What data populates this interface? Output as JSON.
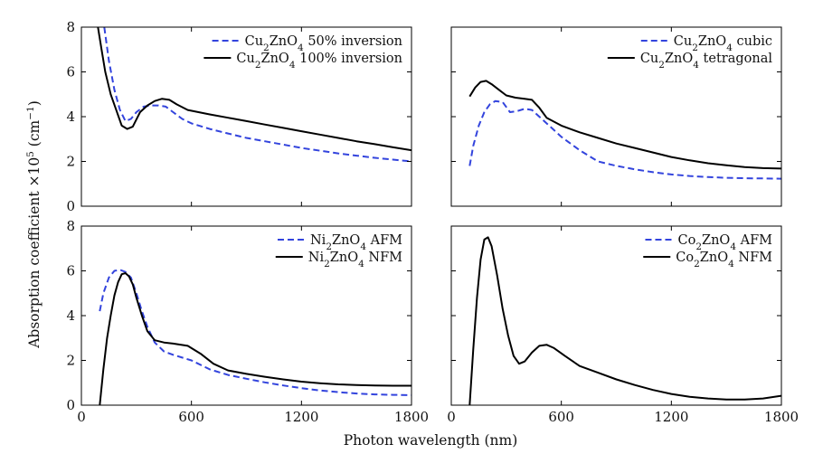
{
  "figure": {
    "xlabel": "Photon wavelength (nm)",
    "ylabel": "Absorption coefficient ×10^5 (cm^−1)",
    "ylabel_parts": [
      "Absorption coefficient ×10",
      "5",
      " (cm",
      "−1",
      ")"
    ]
  },
  "chart_data": [
    {
      "type": "line",
      "id": "top-left",
      "xlim": [
        0,
        1800
      ],
      "ylim": [
        0,
        8
      ],
      "xticks": [
        0,
        600,
        1200,
        1800
      ],
      "yticks": [
        0,
        2,
        4,
        6,
        8
      ],
      "show_xticklabels": false,
      "show_yticklabels": true,
      "legend_position": "top-right",
      "series": [
        {
          "name": "Cu2ZnO4 50% inversion",
          "label_parts": [
            "Cu",
            "2",
            "ZnO",
            "4",
            " 50% inversion"
          ],
          "style": "dashed",
          "color": "#3344dd",
          "x": [
            125,
            150,
            180,
            210,
            240,
            270,
            300,
            340,
            380,
            420,
            460,
            500,
            550,
            600,
            700,
            800,
            900,
            1000,
            1100,
            1200,
            1300,
            1400,
            1500,
            1600,
            1700,
            1800
          ],
          "y": [
            8.0,
            6.5,
            5.2,
            4.3,
            3.8,
            3.9,
            4.2,
            4.45,
            4.5,
            4.5,
            4.45,
            4.2,
            3.9,
            3.7,
            3.45,
            3.25,
            3.05,
            2.9,
            2.75,
            2.6,
            2.48,
            2.36,
            2.26,
            2.16,
            2.08,
            2.0
          ]
        },
        {
          "name": "Cu2ZnO4 100% inversion",
          "label_parts": [
            "Cu",
            "2",
            "ZnO",
            "4",
            " 100% inversion"
          ],
          "style": "solid",
          "color": "#000000",
          "x": [
            90,
            110,
            130,
            160,
            190,
            220,
            250,
            280,
            320,
            360,
            400,
            440,
            480,
            520,
            580,
            700,
            800,
            900,
            1000,
            1100,
            1200,
            1300,
            1400,
            1500,
            1600,
            1700,
            1800
          ],
          "y": [
            8.0,
            7.0,
            6.0,
            5.0,
            4.3,
            3.6,
            3.45,
            3.55,
            4.2,
            4.5,
            4.7,
            4.8,
            4.75,
            4.55,
            4.3,
            4.1,
            3.95,
            3.8,
            3.65,
            3.5,
            3.35,
            3.2,
            3.05,
            2.9,
            2.77,
            2.63,
            2.5
          ]
        }
      ]
    },
    {
      "type": "line",
      "id": "top-right",
      "xlim": [
        0,
        1800
      ],
      "ylim": [
        0,
        8
      ],
      "xticks": [
        0,
        600,
        1200,
        1800
      ],
      "yticks": [
        0,
        2,
        4,
        6,
        8
      ],
      "show_xticklabels": false,
      "show_yticklabels": false,
      "legend_position": "top-right",
      "series": [
        {
          "name": "Cu2ZnO4 cubic",
          "label_parts": [
            "Cu",
            "2",
            "ZnO",
            "4",
            " cubic"
          ],
          "style": "dashed",
          "color": "#3344dd",
          "x": [
            100,
            120,
            150,
            180,
            210,
            240,
            280,
            320,
            360,
            400,
            440,
            480,
            540,
            600,
            700,
            800,
            900,
            1000,
            1100,
            1200,
            1300,
            1400,
            1500,
            1600,
            1700,
            1800
          ],
          "y": [
            1.8,
            2.7,
            3.6,
            4.2,
            4.55,
            4.7,
            4.65,
            4.2,
            4.25,
            4.35,
            4.3,
            4.0,
            3.55,
            3.1,
            2.5,
            2.0,
            1.8,
            1.65,
            1.52,
            1.42,
            1.35,
            1.3,
            1.27,
            1.25,
            1.24,
            1.23
          ]
        },
        {
          "name": "Cu2ZnO4 tetragonal",
          "label_parts": [
            "Cu",
            "2",
            "ZnO",
            "4",
            " tetragonal"
          ],
          "style": "solid",
          "color": "#000000",
          "x": [
            100,
            130,
            160,
            190,
            220,
            260,
            300,
            350,
            400,
            440,
            480,
            520,
            600,
            700,
            800,
            900,
            1000,
            1100,
            1200,
            1300,
            1400,
            1500,
            1600,
            1700,
            1800
          ],
          "y": [
            4.9,
            5.3,
            5.55,
            5.6,
            5.45,
            5.2,
            4.95,
            4.85,
            4.8,
            4.75,
            4.4,
            3.95,
            3.6,
            3.3,
            3.05,
            2.8,
            2.6,
            2.4,
            2.2,
            2.05,
            1.92,
            1.83,
            1.75,
            1.7,
            1.68
          ]
        }
      ]
    },
    {
      "type": "line",
      "id": "bottom-left",
      "xlim": [
        0,
        1800
      ],
      "ylim": [
        0,
        8
      ],
      "xticks": [
        0,
        600,
        1200,
        1800
      ],
      "yticks": [
        0,
        2,
        4,
        6,
        8
      ],
      "show_xticklabels": true,
      "show_yticklabels": true,
      "legend_position": "top-right",
      "series": [
        {
          "name": "Ni2ZnO4 AFM",
          "label_parts": [
            "Ni",
            "2",
            "ZnO",
            "4",
            " AFM"
          ],
          "style": "dashed",
          "color": "#3344dd",
          "x": [
            100,
            120,
            150,
            180,
            210,
            240,
            270,
            300,
            330,
            360,
            400,
            450,
            500,
            600,
            700,
            800,
            900,
            1000,
            1100,
            1200,
            1300,
            1400,
            1500,
            1600,
            1700,
            1800
          ],
          "y": [
            4.2,
            5.0,
            5.7,
            6.0,
            6.05,
            5.95,
            5.7,
            5.0,
            4.2,
            3.5,
            2.8,
            2.4,
            2.25,
            2.0,
            1.6,
            1.35,
            1.18,
            1.02,
            0.88,
            0.76,
            0.66,
            0.58,
            0.52,
            0.48,
            0.46,
            0.45
          ]
        },
        {
          "name": "Ni2ZnO4 NFM",
          "label_parts": [
            "Ni",
            "2",
            "ZnO",
            "4",
            " NFM"
          ],
          "style": "solid",
          "color": "#000000",
          "x": [
            100,
            120,
            140,
            160,
            180,
            200,
            220,
            240,
            260,
            280,
            300,
            330,
            360,
            400,
            450,
            500,
            580,
            650,
            720,
            800,
            900,
            1000,
            1100,
            1200,
            1300,
            1400,
            1500,
            1600,
            1700,
            1800
          ],
          "y": [
            0.0,
            1.6,
            3.0,
            4.0,
            4.9,
            5.5,
            5.85,
            5.9,
            5.75,
            5.4,
            4.8,
            4.0,
            3.3,
            2.9,
            2.8,
            2.75,
            2.65,
            2.3,
            1.85,
            1.55,
            1.4,
            1.27,
            1.15,
            1.05,
            0.98,
            0.93,
            0.9,
            0.88,
            0.87,
            0.87
          ]
        }
      ]
    },
    {
      "type": "line",
      "id": "bottom-right",
      "xlim": [
        0,
        1800
      ],
      "ylim": [
        0,
        8
      ],
      "xticks": [
        0,
        600,
        1200,
        1800
      ],
      "yticks": [
        0,
        2,
        4,
        6,
        8
      ],
      "show_xticklabels": true,
      "show_yticklabels": false,
      "legend_position": "top-right",
      "series": [
        {
          "name": "Co2ZnO4 AFM",
          "label_parts": [
            "Co",
            "2",
            "ZnO",
            "4",
            " AFM"
          ],
          "style": "dashed",
          "color": "#3344dd",
          "x": [],
          "y": []
        },
        {
          "name": "Co2ZnO4 NFM",
          "label_parts": [
            "Co",
            "2",
            "ZnO",
            "4",
            " NFM"
          ],
          "style": "solid",
          "color": "#000000",
          "x": [
            100,
            120,
            140,
            160,
            180,
            200,
            220,
            250,
            280,
            310,
            340,
            370,
            400,
            440,
            480,
            520,
            560,
            620,
            700,
            800,
            900,
            1000,
            1100,
            1200,
            1300,
            1400,
            1500,
            1600,
            1700,
            1800
          ],
          "y": [
            0.0,
            2.5,
            4.8,
            6.5,
            7.4,
            7.5,
            7.1,
            5.8,
            4.3,
            3.1,
            2.2,
            1.85,
            1.95,
            2.35,
            2.65,
            2.7,
            2.55,
            2.2,
            1.75,
            1.45,
            1.15,
            0.9,
            0.68,
            0.5,
            0.37,
            0.3,
            0.25,
            0.25,
            0.3,
            0.42
          ]
        }
      ]
    }
  ]
}
